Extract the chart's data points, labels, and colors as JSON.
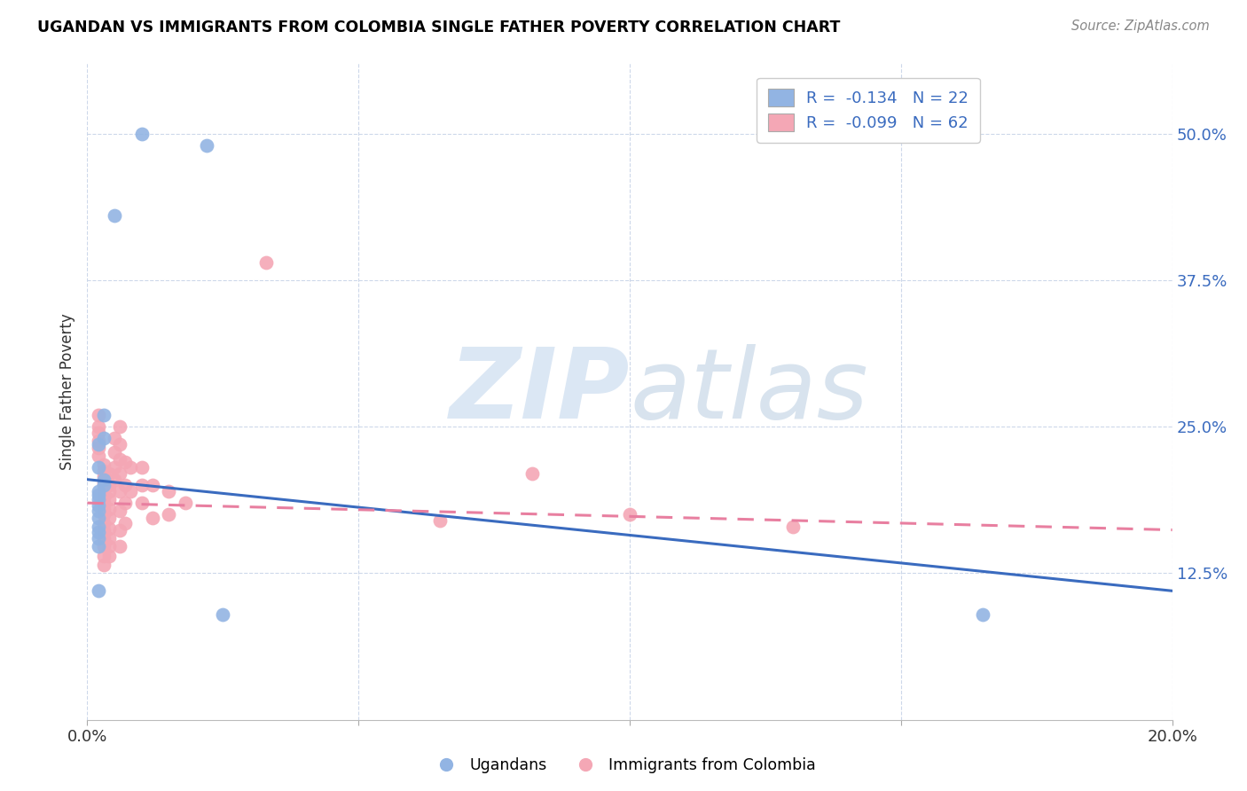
{
  "title": "UGANDAN VS IMMIGRANTS FROM COLOMBIA SINGLE FATHER POVERTY CORRELATION CHART",
  "source": "Source: ZipAtlas.com",
  "ylabel": "Single Father Poverty",
  "ytick_labels": [
    "12.5%",
    "25.0%",
    "37.5%",
    "50.0%"
  ],
  "ytick_values": [
    0.125,
    0.25,
    0.375,
    0.5
  ],
  "xtick_labels": [
    "0.0%",
    "",
    "",
    "",
    "20.0%"
  ],
  "xtick_values": [
    0.0,
    0.05,
    0.1,
    0.15,
    0.2
  ],
  "xlim": [
    0.0,
    0.2
  ],
  "ylim": [
    0.0,
    0.56
  ],
  "legend_line1": "R =  -0.134   N = 22",
  "legend_line2": "R =  -0.099   N = 62",
  "ugandan_color": "#92b4e3",
  "colombia_color": "#f4a7b5",
  "line_ugandan_color": "#3a6bbf",
  "line_colombia_color": "#e87fa0",
  "ugandan_points": [
    [
      0.01,
      0.5
    ],
    [
      0.005,
      0.43
    ],
    [
      0.022,
      0.49
    ],
    [
      0.003,
      0.26
    ],
    [
      0.003,
      0.24
    ],
    [
      0.002,
      0.235
    ],
    [
      0.002,
      0.215
    ],
    [
      0.003,
      0.205
    ],
    [
      0.003,
      0.2
    ],
    [
      0.002,
      0.195
    ],
    [
      0.002,
      0.192
    ],
    [
      0.002,
      0.188
    ],
    [
      0.002,
      0.183
    ],
    [
      0.002,
      0.178
    ],
    [
      0.002,
      0.172
    ],
    [
      0.002,
      0.165
    ],
    [
      0.002,
      0.16
    ],
    [
      0.002,
      0.155
    ],
    [
      0.002,
      0.148
    ],
    [
      0.002,
      0.11
    ],
    [
      0.025,
      0.09
    ],
    [
      0.165,
      0.09
    ]
  ],
  "colombia_points": [
    [
      0.033,
      0.39
    ],
    [
      0.002,
      0.26
    ],
    [
      0.002,
      0.25
    ],
    [
      0.002,
      0.245
    ],
    [
      0.002,
      0.238
    ],
    [
      0.002,
      0.232
    ],
    [
      0.002,
      0.225
    ],
    [
      0.003,
      0.218
    ],
    [
      0.003,
      0.212
    ],
    [
      0.003,
      0.208
    ],
    [
      0.003,
      0.202
    ],
    [
      0.003,
      0.196
    ],
    [
      0.003,
      0.19
    ],
    [
      0.003,
      0.185
    ],
    [
      0.003,
      0.18
    ],
    [
      0.003,
      0.175
    ],
    [
      0.003,
      0.168
    ],
    [
      0.003,
      0.162
    ],
    [
      0.003,
      0.155
    ],
    [
      0.003,
      0.148
    ],
    [
      0.003,
      0.14
    ],
    [
      0.003,
      0.132
    ],
    [
      0.004,
      0.21
    ],
    [
      0.004,
      0.2
    ],
    [
      0.004,
      0.195
    ],
    [
      0.004,
      0.188
    ],
    [
      0.004,
      0.18
    ],
    [
      0.004,
      0.172
    ],
    [
      0.004,
      0.163
    ],
    [
      0.004,
      0.155
    ],
    [
      0.004,
      0.148
    ],
    [
      0.004,
      0.14
    ],
    [
      0.005,
      0.24
    ],
    [
      0.005,
      0.228
    ],
    [
      0.005,
      0.215
    ],
    [
      0.005,
      0.205
    ],
    [
      0.006,
      0.25
    ],
    [
      0.006,
      0.235
    ],
    [
      0.006,
      0.222
    ],
    [
      0.006,
      0.21
    ],
    [
      0.006,
      0.195
    ],
    [
      0.006,
      0.178
    ],
    [
      0.006,
      0.162
    ],
    [
      0.006,
      0.148
    ],
    [
      0.007,
      0.22
    ],
    [
      0.007,
      0.2
    ],
    [
      0.007,
      0.185
    ],
    [
      0.007,
      0.168
    ],
    [
      0.008,
      0.215
    ],
    [
      0.008,
      0.195
    ],
    [
      0.01,
      0.215
    ],
    [
      0.01,
      0.2
    ],
    [
      0.01,
      0.185
    ],
    [
      0.012,
      0.2
    ],
    [
      0.012,
      0.172
    ],
    [
      0.015,
      0.195
    ],
    [
      0.015,
      0.175
    ],
    [
      0.018,
      0.185
    ],
    [
      0.065,
      0.17
    ],
    [
      0.082,
      0.21
    ],
    [
      0.1,
      0.175
    ],
    [
      0.13,
      0.165
    ]
  ],
  "ugandan_line_x": [
    0.0,
    0.2
  ],
  "ugandan_line_y": [
    0.205,
    0.11
  ],
  "colombia_line_x": [
    0.0,
    0.2
  ],
  "colombia_line_y": [
    0.185,
    0.162
  ]
}
